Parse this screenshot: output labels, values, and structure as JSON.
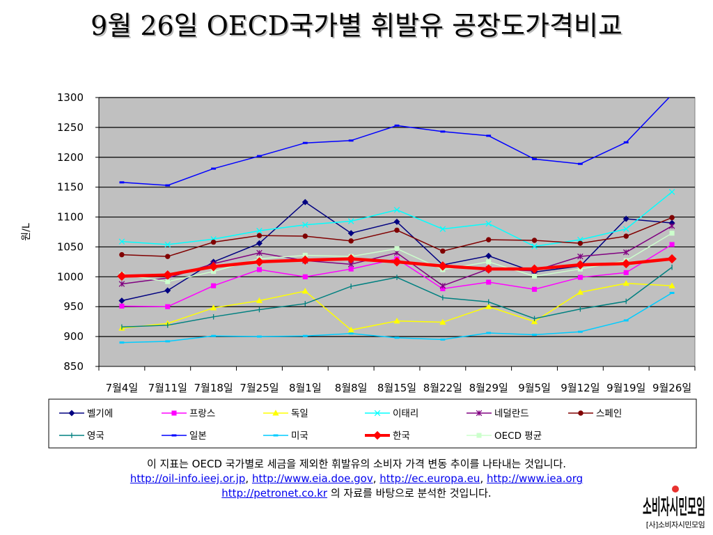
{
  "slide": {
    "title": "9월 26일 OECD국가별 휘발유 공장도가격비교"
  },
  "caption": {
    "line1": "이 지표는 OECD 국가별로 세금을 제외한 휘발유의 소비자 가격 변동 추이를 나타내는 것입니다.",
    "links": [
      "http://oil-info.ieej.or.jp",
      "http://www.eia.doe.gov",
      "http://ec.europa.eu",
      "http://www.iea.org",
      "http://petronet.co.kr"
    ],
    "separator": ",",
    "line3_suffix": "의 자료를 바탕으로 분석한 것입니다."
  },
  "logo": {
    "text": "소비자시민모임",
    "label": "[사]소비자시민모임"
  },
  "chart_data": {
    "type": "line",
    "title": "9월 26일 OECD국가별 휘발유 공장도가격비교",
    "xlabel": "",
    "ylabel": "원/L",
    "ylim": [
      850,
      1300
    ],
    "yticks": [
      850,
      900,
      950,
      1000,
      1050,
      1100,
      1150,
      1200,
      1250,
      1300
    ],
    "grid": true,
    "legend_position": "bottom",
    "categories": [
      "7월4일",
      "7월11일",
      "7월18일",
      "7월25일",
      "8월1일",
      "8월8일",
      "8월15일",
      "8월22일",
      "8월29일",
      "9월5일",
      "9월12일",
      "9월19일",
      "9월26일"
    ],
    "plot_background": "#c0c0c0",
    "series": [
      {
        "name": "벨기에",
        "color": "#000080",
        "marker": "diamond",
        "values": [
          960,
          977,
          1025,
          1056,
          1125,
          1073,
          1092,
          1020,
          1035,
          1008,
          1018,
          1097,
          1090
        ]
      },
      {
        "name": "프랑스",
        "color": "#ff00ff",
        "marker": "square",
        "values": [
          951,
          950,
          985,
          1012,
          1000,
          1013,
          1030,
          980,
          991,
          979,
          999,
          1007,
          1054
        ]
      },
      {
        "name": "독일",
        "color": "#ffff00",
        "marker": "triangle",
        "values": [
          914,
          922,
          948,
          960,
          976,
          911,
          926,
          924,
          950,
          925,
          974,
          989,
          985
        ]
      },
      {
        "name": "이태리",
        "color": "#00ffff",
        "marker": "x",
        "values": [
          1059,
          1054,
          1063,
          1077,
          1087,
          1093,
          1112,
          1080,
          1089,
          1051,
          1062,
          1080,
          1142
        ]
      },
      {
        "name": "네덜란드",
        "color": "#800080",
        "marker": "star",
        "values": [
          988,
          998,
          1022,
          1040,
          1027,
          1021,
          1040,
          985,
          1013,
          1010,
          1034,
          1041,
          1085
        ]
      },
      {
        "name": "스페인",
        "color": "#800000",
        "marker": "circle",
        "values": [
          1037,
          1034,
          1058,
          1069,
          1068,
          1060,
          1078,
          1043,
          1062,
          1061,
          1056,
          1068,
          1099
        ]
      },
      {
        "name": "영국",
        "color": "#008080",
        "marker": "plus",
        "values": [
          916,
          919,
          933,
          945,
          955,
          984,
          999,
          965,
          958,
          930,
          946,
          959,
          1016
        ]
      },
      {
        "name": "일본",
        "color": "#0000ff",
        "marker": "dash",
        "values": [
          1158,
          1153,
          1181,
          1202,
          1224,
          1228,
          1253,
          1243,
          1236,
          1197,
          1189,
          1225,
          1305
        ]
      },
      {
        "name": "미국",
        "color": "#00ccff",
        "marker": "dash",
        "values": [
          890,
          892,
          901,
          900,
          901,
          905,
          898,
          895,
          906,
          903,
          908,
          927,
          973
        ]
      },
      {
        "name": "한국",
        "color": "#ff0000",
        "marker": "diamond",
        "bold": true,
        "values": [
          1001,
          1003,
          1017,
          1025,
          1028,
          1030,
          1025,
          1018,
          1013,
          1013,
          1020,
          1022,
          1030
        ]
      },
      {
        "name": "OECD 평균",
        "color": "#ccffcc",
        "marker": "square",
        "values": [
          1004,
          992,
          1009,
          1030,
          1036,
          1034,
          1047,
          1012,
          1025,
          1001,
          1013,
          1027,
          1073
        ]
      }
    ]
  }
}
